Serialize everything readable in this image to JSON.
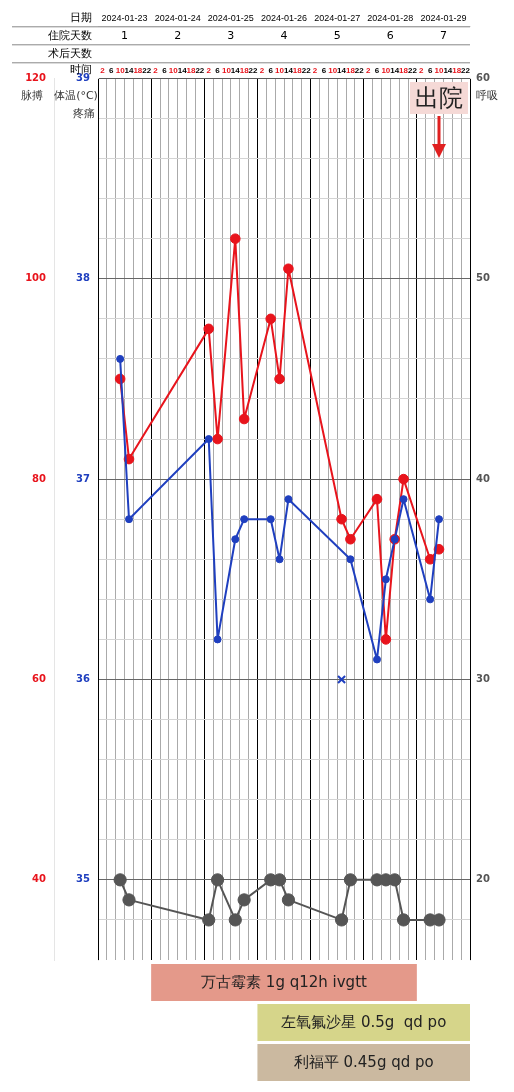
{
  "chart_data": {
    "type": "line",
    "xlabel": "时间",
    "x2label": "日期",
    "ylabel": "体温(°C)",
    "y2label": "脉搏",
    "y3label": "呼吸",
    "xlim": [
      "2024-01-23T00:00",
      "2024-01-30T00:00"
    ],
    "xticks": [
      {
        "value": "2024-01-23T00:00",
        "label": null
      },
      {
        "value": "2024-01-23T02:00",
        "label": "2"
      },
      {
        "value": "2024-01-23T04:00",
        "label": null
      },
      {
        "value": "2024-01-23T06:00",
        "label": "6"
      },
      {
        "value": "2024-01-23T08:00",
        "label": null
      },
      {
        "value": "2024-01-23T10:00",
        "label": "10"
      },
      {
        "value": "2024-01-23T12:00",
        "label": null
      },
      {
        "value": "2024-01-23T14:00",
        "label": "14"
      },
      {
        "value": "2024-01-23T16:00",
        "label": null
      },
      {
        "value": "2024-01-23T18:00",
        "label": "18"
      },
      {
        "value": "2024-01-23T20:00",
        "label": null
      },
      {
        "value": "2024-01-23T22:00",
        "label": "22"
      },
      {
        "value": "2024-01-24T00:00",
        "label": null
      },
      {
        "value": "2024-01-24T02:00",
        "label": "2"
      },
      {
        "value": "2024-01-24T04:00",
        "label": null
      },
      {
        "value": "2024-01-24T06:00",
        "label": "6"
      },
      {
        "value": "2024-01-24T08:00",
        "label": null
      },
      {
        "value": "2024-01-24T10:00",
        "label": "10"
      },
      {
        "value": "2024-01-24T12:00",
        "label": null
      },
      {
        "value": "2024-01-24T14:00",
        "label": "14"
      },
      {
        "value": "2024-01-24T16:00",
        "label": null
      },
      {
        "value": "2024-01-24T18:00",
        "label": "18"
      },
      {
        "value": "2024-01-24T20:00",
        "label": null
      },
      {
        "value": "2024-01-24T22:00",
        "label": "22"
      },
      {
        "value": "2024-01-25T00:00",
        "label": null
      },
      {
        "value": "2024-01-25T02:00",
        "label": "2"
      },
      {
        "value": "2024-01-25T04:00",
        "label": null
      },
      {
        "value": "2024-01-25T06:00",
        "label": "6"
      },
      {
        "value": "2024-01-25T08:00",
        "label": null
      },
      {
        "value": "2024-01-25T10:00",
        "label": "10"
      },
      {
        "value": "2024-01-25T12:00",
        "label": null
      },
      {
        "value": "2024-01-25T14:00",
        "label": "14"
      },
      {
        "value": "2024-01-25T16:00",
        "label": null
      },
      {
        "value": "2024-01-25T18:00",
        "label": "18"
      },
      {
        "value": "2024-01-25T20:00",
        "label": null
      },
      {
        "value": "2024-01-25T22:00",
        "label": "22"
      },
      {
        "value": "2024-01-26T00:00",
        "label": null
      },
      {
        "value": "2024-01-26T02:00",
        "label": "2"
      },
      {
        "value": "2024-01-26T04:00",
        "label": null
      },
      {
        "value": "2024-01-26T06:00",
        "label": "6"
      },
      {
        "value": "2024-01-26T08:00",
        "label": null
      },
      {
        "value": "2024-01-26T10:00",
        "label": "10"
      },
      {
        "value": "2024-01-26T12:00",
        "label": null
      },
      {
        "value": "2024-01-26T14:00",
        "label": "14"
      },
      {
        "value": "2024-01-26T16:00",
        "label": null
      },
      {
        "value": "2024-01-26T18:00",
        "label": "18"
      },
      {
        "value": "2024-01-26T20:00",
        "label": null
      },
      {
        "value": "2024-01-26T22:00",
        "label": "22"
      },
      {
        "value": "2024-01-27T00:00",
        "label": null
      },
      {
        "value": "2024-01-27T02:00",
        "label": "2"
      },
      {
        "value": "2024-01-27T04:00",
        "label": null
      },
      {
        "value": "2024-01-27T06:00",
        "label": "6"
      },
      {
        "value": "2024-01-27T08:00",
        "label": null
      },
      {
        "value": "2024-01-27T10:00",
        "label": "10"
      },
      {
        "value": "2024-01-27T12:00",
        "label": null
      },
      {
        "value": "2024-01-27T14:00",
        "label": "14"
      },
      {
        "value": "2024-01-27T16:00",
        "label": null
      },
      {
        "value": "2024-01-27T18:00",
        "label": "18"
      },
      {
        "value": "2024-01-27T20:00",
        "label": null
      },
      {
        "value": "2024-01-27T22:00",
        "label": "22"
      },
      {
        "value": "2024-01-28T00:00",
        "label": null
      },
      {
        "value": "2024-01-28T02:00",
        "label": "2"
      },
      {
        "value": "2024-01-28T04:00",
        "label": null
      },
      {
        "value": "2024-01-28T06:00",
        "label": "6"
      },
      {
        "value": "2024-01-28T08:00",
        "label": null
      },
      {
        "value": "2024-01-28T10:00",
        "label": "10"
      },
      {
        "value": "2024-01-28T12:00",
        "label": null
      },
      {
        "value": "2024-01-28T14:00",
        "label": "14"
      },
      {
        "value": "2024-01-28T16:00",
        "label": null
      },
      {
        "value": "2024-01-28T18:00",
        "label": "18"
      },
      {
        "value": "2024-01-28T20:00",
        "label": null
      },
      {
        "value": "2024-01-28T22:00",
        "label": "22"
      },
      {
        "value": "2024-01-29T00:00",
        "label": null
      },
      {
        "value": "2024-01-29T02:00",
        "label": "2"
      },
      {
        "value": "2024-01-29T04:00",
        "label": null
      },
      {
        "value": "2024-01-29T06:00",
        "label": "6"
      },
      {
        "value": "2024-01-29T08:00",
        "label": null
      },
      {
        "value": "2024-01-29T10:00",
        "label": "10"
      },
      {
        "value": "2024-01-29T12:00",
        "label": null
      },
      {
        "value": "2024-01-29T14:00",
        "label": "14"
      },
      {
        "value": "2024-01-29T16:00",
        "label": null
      },
      {
        "value": "2024-01-29T18:00",
        "label": "18"
      },
      {
        "value": "2024-01-29T20:00",
        "label": null
      },
      {
        "value": "2024-01-29T22:00",
        "label": "22"
      },
      {
        "value": "2024-01-30T00:00",
        "label": null
      }
    ],
    "x2lim": [
      "2024-01-23T00:00",
      "2024-01-30T00:00"
    ],
    "x2ticks": [
      {
        "value": "2024-01-23T12:00",
        "label": "2024-01-23"
      },
      {
        "value": "2024-01-24T12:00",
        "label": "2024-01-24"
      },
      {
        "value": "2024-01-25T12:00",
        "label": "2024-01-25"
      },
      {
        "value": "2024-01-26T12:00",
        "label": "2024-01-26"
      },
      {
        "value": "2024-01-27T12:00",
        "label": "2024-01-27"
      },
      {
        "value": "2024-01-28T12:00",
        "label": "2024-01-28"
      },
      {
        "value": "2024-01-29T12:00",
        "label": "2024-01-29"
      }
    ],
    "ylim": [
      34.6,
      39
    ],
    "yticks": [
      {
        "value": 34.8,
        "label": null
      },
      35,
      {
        "value": 35.2,
        "label": null
      },
      {
        "value": 35.4,
        "label": null
      },
      {
        "value": 35.6,
        "label": null
      },
      {
        "value": 35.8,
        "label": null
      },
      36,
      {
        "value": 36.2,
        "label": null
      },
      {
        "value": 36.4,
        "label": null
      },
      {
        "value": 36.6,
        "label": null
      },
      {
        "value": 36.8,
        "label": null
      },
      37,
      {
        "value": 37.2,
        "label": null
      },
      {
        "value": 37.4,
        "label": null
      },
      {
        "value": 37.6,
        "label": null
      },
      {
        "value": 37.8,
        "label": null
      },
      38,
      {
        "value": 38.2,
        "label": null
      },
      {
        "value": 38.4,
        "label": null
      },
      {
        "value": 38.6,
        "label": null
      },
      {
        "value": 38.8,
        "label": null
      },
      39
    ],
    "y2lim": [
      32,
      120
    ],
    "y2ticks": [
      40,
      60,
      80,
      100,
      120
    ],
    "y3lim": [
      16,
      60
    ],
    "y3ticks": [
      20,
      30,
      40,
      50,
      60
    ],
    "grid": true,
    "marker": "circle",
    "series": [
      {
        "color": "#1f3fbf",
        "x": [
          "2024-01-23T10:00",
          "2024-01-23T14:00",
          "2024-01-25T02:00",
          "2024-01-25T06:00",
          "2024-01-25T14:00",
          "2024-01-25T18:00",
          "2024-01-26T06:00",
          "2024-01-26T10:00",
          "2024-01-26T14:00",
          "2024-01-27T18:00",
          "2024-01-28T06:00",
          "2024-01-28T10:00",
          "2024-01-28T14:00",
          "2024-01-28T18:00",
          "2024-01-29T06:00",
          "2024-01-29T10:00"
        ],
        "values": [
          37.6,
          36.8,
          37.2,
          36.2,
          36.7,
          36.8,
          36.8,
          36.6,
          36.9,
          36.6,
          36.1,
          36.5,
          36.7,
          36.9,
          36.4,
          36.8
        ]
      },
      {
        "color": "#e8141c",
        "axis": "y2",
        "x": [
          "2024-01-23T10:00",
          "2024-01-23T14:00",
          "2024-01-25T02:00",
          "2024-01-25T06:00",
          "2024-01-25T14:00",
          "2024-01-25T18:00",
          "2024-01-26T06:00",
          "2024-01-26T10:00",
          "2024-01-26T14:00",
          "2024-01-27T14:00",
          "2024-01-27T18:00",
          "2024-01-28T06:00",
          "2024-01-28T10:00",
          "2024-01-28T14:00",
          "2024-01-28T18:00",
          "2024-01-29T06:00",
          "2024-01-29T10:00"
        ],
        "values": [
          90,
          82,
          95,
          84,
          104,
          86,
          96,
          90,
          101,
          76,
          74,
          78,
          64,
          74,
          80,
          72,
          73
        ]
      },
      {
        "color": "#555555",
        "axis": "y3",
        "x": [
          "2024-01-23T10:00",
          "2024-01-23T14:00",
          "2024-01-25T02:00",
          "2024-01-25T06:00",
          "2024-01-25T14:00",
          "2024-01-25T18:00",
          "2024-01-26T06:00",
          "2024-01-26T10:00",
          "2024-01-26T14:00",
          "2024-01-27T14:00",
          "2024-01-27T18:00",
          "2024-01-28T06:00",
          "2024-01-28T10:00",
          "2024-01-28T14:00",
          "2024-01-28T18:00",
          "2024-01-29T06:00",
          "2024-01-29T10:00"
        ],
        "values": [
          20,
          19,
          18,
          20,
          18,
          19,
          20,
          20,
          19,
          18,
          20,
          20,
          20,
          20,
          18,
          18,
          18
        ]
      },
      {
        "type": "scatter",
        "marker": "cross",
        "color": "#1f3fbf",
        "x": [
          "2024-01-27T14:00"
        ],
        "values": [
          36.0
        ]
      }
    ],
    "annotations": [
      "住院天数",
      "术后天数",
      "疼痛",
      "1",
      "2",
      "3",
      "4",
      "5",
      "6",
      "7",
      "万古霉素 1g q12h ivgtt",
      "左氧氟沙星 0.5g  qd po",
      "利福平 0.45g qd po",
      {
        "text": "出院",
        "x": "2024-01-29T10:00"
      }
    ]
  }
}
